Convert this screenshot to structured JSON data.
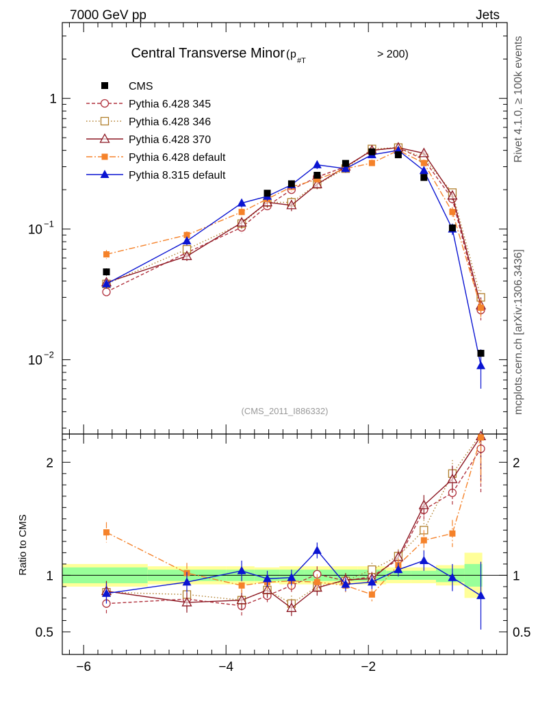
{
  "header": {
    "left": "7000 GeV pp",
    "right": "Jets"
  },
  "side_labels": {
    "rivet": "Rivet 4.1.0, ≥ 100k events",
    "source": "mcplots.cern.ch [arXiv:1306.3436]"
  },
  "watermark": "(CMS_2011_I886332)",
  "chart_data": {
    "type": "line",
    "title": "Central Transverse Minor",
    "title_cut": {
      "p": "p",
      "sub": "#T",
      "rest": "> 200)"
    },
    "xlim": [
      -6.3,
      -0.05
    ],
    "x_ticks": [
      {
        "v": -6,
        "label": "−6"
      },
      {
        "v": -4,
        "label": "−4"
      },
      {
        "v": -2,
        "label": "−2"
      }
    ],
    "main": {
      "yscale": "log",
      "ylim": [
        0.0027,
        3.8
      ],
      "y_ticks": [
        {
          "v": 1,
          "base": "1",
          "exp": ""
        },
        {
          "v": 0.1,
          "base": "10",
          "exp": "−1"
        },
        {
          "v": 0.01,
          "base": "10",
          "exp": "−2"
        }
      ]
    },
    "ratio": {
      "ylabel": "Ratio to CMS",
      "ylim": [
        0.3,
        2.25
      ],
      "y_ticks": [
        {
          "v": 0.5,
          "label": "0.5"
        },
        {
          "v": 1,
          "label": "1"
        },
        {
          "v": 2,
          "label": "2"
        }
      ],
      "bands": {
        "edges": [
          -6.3,
          -5.1,
          -4.0,
          -3.6,
          -3.25,
          -2.9,
          -2.5,
          -2.15,
          -1.75,
          -1.4,
          -1.05,
          -0.65,
          -0.4
        ],
        "inner": [
          0.07,
          0.05,
          0.05,
          0.05,
          0.05,
          0.05,
          0.05,
          0.05,
          0.04,
          0.04,
          0.06,
          0.1
        ],
        "outer": [
          0.1,
          0.08,
          0.08,
          0.07,
          0.08,
          0.08,
          0.08,
          0.08,
          0.07,
          0.07,
          0.09,
          0.2
        ]
      }
    },
    "x": [
      -5.68,
      -4.55,
      -3.78,
      -3.42,
      -3.08,
      -2.72,
      -2.32,
      -1.95,
      -1.58,
      -1.22,
      -0.82,
      -0.42
    ],
    "data": {
      "name": "CMS",
      "values": [
        0.047,
        null,
        null,
        0.188,
        0.222,
        0.258,
        0.318,
        0.39,
        0.37,
        0.248,
        0.102,
        0.0112
      ],
      "errors": [
        0.003,
        null,
        null,
        0.01,
        0.01,
        0.012,
        0.014,
        0.016,
        0.015,
        0.012,
        0.006,
        0.0007
      ]
    },
    "series": [
      {
        "name": "Pythia 6.428 345",
        "color": "#b0303c",
        "dash": "5,3",
        "marker": "circle-open",
        "values": [
          0.033,
          0.066,
          0.103,
          0.15,
          0.2,
          0.25,
          0.3,
          0.4,
          0.42,
          0.34,
          0.17,
          0.024
        ],
        "errors": [
          0.003,
          0.005,
          0.01,
          0.014,
          0.018,
          0.02,
          0.02,
          0.022,
          0.022,
          0.02,
          0.013,
          0.004
        ],
        "ratio": [
          0.75,
          0.79,
          0.73,
          0.82,
          0.91,
          1.01,
          0.95,
          0.99,
          1.14,
          1.58,
          1.73,
          2.12
        ],
        "ratio_err": [
          0.09,
          0.09,
          0.09,
          0.07,
          0.07,
          0.07,
          0.06,
          0.06,
          0.06,
          0.09,
          0.12,
          0.4
        ]
      },
      {
        "name": "Pythia 6.428 346",
        "color": "#b07d2a",
        "dash": "1.5,3",
        "marker": "square-open",
        "values": [
          0.038,
          0.07,
          0.11,
          0.16,
          0.16,
          0.22,
          0.29,
          0.41,
          0.42,
          0.35,
          0.19,
          0.03
        ],
        "errors": [
          0.003,
          0.005,
          0.01,
          0.014,
          0.015,
          0.018,
          0.02,
          0.022,
          0.022,
          0.02,
          0.014,
          0.004
        ],
        "ratio": [
          0.85,
          0.83,
          0.78,
          0.87,
          0.75,
          0.9,
          0.95,
          1.05,
          1.17,
          1.4,
          1.9,
          2.3
        ],
        "ratio_err": [
          0.09,
          0.09,
          0.09,
          0.07,
          0.07,
          0.07,
          0.06,
          0.06,
          0.06,
          0.09,
          0.12,
          0.4
        ]
      },
      {
        "name": "Pythia 6.428 370",
        "color": "#8b1520",
        "dash": "",
        "marker": "triangle-open",
        "values": [
          0.039,
          0.062,
          0.112,
          0.16,
          0.152,
          0.22,
          0.3,
          0.4,
          0.42,
          0.38,
          0.18,
          0.026
        ],
        "errors": [
          0.003,
          0.005,
          0.01,
          0.014,
          0.015,
          0.018,
          0.02,
          0.022,
          0.022,
          0.02,
          0.014,
          0.004
        ],
        "ratio": [
          0.86,
          0.76,
          0.78,
          0.87,
          0.71,
          0.89,
          0.96,
          0.97,
          1.16,
          1.62,
          1.85,
          2.23
        ],
        "ratio_err": [
          0.09,
          0.09,
          0.09,
          0.07,
          0.07,
          0.07,
          0.06,
          0.06,
          0.06,
          0.09,
          0.12,
          0.4
        ]
      },
      {
        "name": "Pythia 6.428 default",
        "color": "#f5822a",
        "dash": "9,3,2,3",
        "marker": "square-filled",
        "values": [
          0.064,
          0.09,
          0.135,
          0.17,
          0.21,
          0.24,
          0.29,
          0.32,
          0.4,
          0.32,
          0.135,
          0.025
        ],
        "errors": [
          0.005,
          0.006,
          0.01,
          0.014,
          0.016,
          0.018,
          0.02,
          0.02,
          0.022,
          0.02,
          0.012,
          0.004
        ],
        "ratio": [
          1.38,
          1.02,
          0.91,
          0.94,
          0.95,
          0.94,
          0.91,
          0.83,
          1.09,
          1.31,
          1.37,
          2.22
        ],
        "ratio_err": [
          0.09,
          0.09,
          0.09,
          0.07,
          0.07,
          0.07,
          0.06,
          0.06,
          0.06,
          0.09,
          0.12,
          0.4
        ]
      },
      {
        "name": "Pythia 8.315 default",
        "color": "#0a14d2",
        "dash": "",
        "marker": "triangle-filled",
        "values": [
          0.038,
          0.081,
          0.158,
          0.178,
          0.218,
          0.31,
          0.29,
          0.37,
          0.4,
          0.28,
          0.1,
          0.009
        ],
        "errors": [
          0.003,
          0.006,
          0.012,
          0.014,
          0.016,
          0.022,
          0.02,
          0.022,
          0.022,
          0.02,
          0.01,
          0.003
        ],
        "ratio": [
          0.84,
          0.94,
          1.04,
          0.97,
          0.98,
          1.22,
          0.92,
          0.94,
          1.05,
          1.13,
          0.98,
          0.82
        ],
        "ratio_err": [
          0.09,
          0.09,
          0.09,
          0.07,
          0.07,
          0.07,
          0.06,
          0.06,
          0.06,
          0.09,
          0.12,
          0.3
        ]
      }
    ]
  }
}
